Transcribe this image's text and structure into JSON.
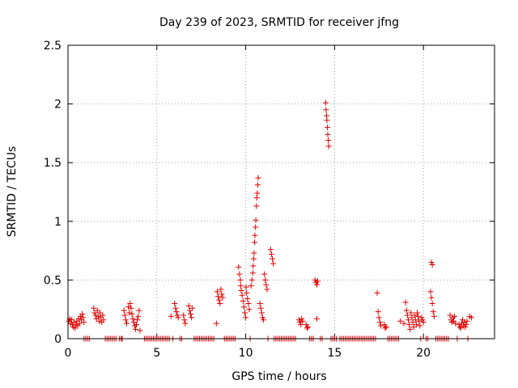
{
  "chart_data": {
    "type": "scatter",
    "title": "Day 239 of 2023, SRMTID for receiver jfng",
    "xlabel": "GPS time / hours",
    "ylabel": "SRMTID / TECUs",
    "xlim": [
      0,
      24
    ],
    "ylim": [
      0,
      2.5
    ],
    "xticks": [
      0,
      5,
      10,
      15,
      20
    ],
    "xtick_labels": [
      "0",
      "5",
      "10",
      "15",
      "20"
    ],
    "yticks": [
      0,
      0.5,
      1,
      1.5,
      2,
      2.5
    ],
    "ytick_labels": [
      "0",
      "0.5",
      "1",
      "1.5",
      "2",
      "2.5"
    ],
    "grid": true,
    "series": [
      {
        "name": "SRMTID",
        "marker": "plus",
        "color": "#e00000",
        "points": [
          [
            0.05,
            0.15
          ],
          [
            0.1,
            0.17
          ],
          [
            0.15,
            0.13
          ],
          [
            0.2,
            0.16
          ],
          [
            0.25,
            0.12
          ],
          [
            0.3,
            0.1
          ],
          [
            0.35,
            0.14
          ],
          [
            0.4,
            0.09
          ],
          [
            0.45,
            0.12
          ],
          [
            0.5,
            0.15
          ],
          [
            0.55,
            0.11
          ],
          [
            0.6,
            0.17
          ],
          [
            0.65,
            0.13
          ],
          [
            0.7,
            0.19
          ],
          [
            0.75,
            0.16
          ],
          [
            0.8,
            0.21
          ],
          [
            0.85,
            0.18
          ],
          [
            0.9,
            0.14
          ],
          [
            1.45,
            0.26
          ],
          [
            1.5,
            0.22
          ],
          [
            1.55,
            0.2
          ],
          [
            1.6,
            0.17
          ],
          [
            1.65,
            0.24
          ],
          [
            1.7,
            0.19
          ],
          [
            1.75,
            0.15
          ],
          [
            1.8,
            0.22
          ],
          [
            1.85,
            0.18
          ],
          [
            1.9,
            0.14
          ],
          [
            1.95,
            0.2
          ],
          [
            2.0,
            0.16
          ],
          [
            3.15,
            0.24
          ],
          [
            3.2,
            0.2
          ],
          [
            3.25,
            0.16
          ],
          [
            3.3,
            0.13
          ],
          [
            3.4,
            0.27
          ],
          [
            3.45,
            0.22
          ],
          [
            3.5,
            0.3
          ],
          [
            3.55,
            0.26
          ],
          [
            3.6,
            0.21
          ],
          [
            3.65,
            0.17
          ],
          [
            3.7,
            0.14
          ],
          [
            3.75,
            0.11
          ],
          [
            3.8,
            0.08
          ],
          [
            3.85,
            0.12
          ],
          [
            3.9,
            0.16
          ],
          [
            3.95,
            0.19
          ],
          [
            4.0,
            0.24
          ],
          [
            4.05,
            0.07
          ],
          [
            5.8,
            0.19
          ],
          [
            6.0,
            0.3
          ],
          [
            6.05,
            0.26
          ],
          [
            6.1,
            0.23
          ],
          [
            6.15,
            0.2
          ],
          [
            6.2,
            0.18
          ],
          [
            6.5,
            0.2
          ],
          [
            6.55,
            0.16
          ],
          [
            6.6,
            0.13
          ],
          [
            6.8,
            0.28
          ],
          [
            6.85,
            0.24
          ],
          [
            6.9,
            0.21
          ],
          [
            6.95,
            0.18
          ],
          [
            7.0,
            0.26
          ],
          [
            8.35,
            0.13
          ],
          [
            8.4,
            0.4
          ],
          [
            8.45,
            0.36
          ],
          [
            8.5,
            0.33
          ],
          [
            8.55,
            0.3
          ],
          [
            8.6,
            0.42
          ],
          [
            8.65,
            0.38
          ],
          [
            8.7,
            0.35
          ],
          [
            9.6,
            0.61
          ],
          [
            9.65,
            0.55
          ],
          [
            9.7,
            0.5
          ],
          [
            9.72,
            0.45
          ],
          [
            9.75,
            0.41
          ],
          [
            9.8,
            0.37
          ],
          [
            9.85,
            0.32
          ],
          [
            9.9,
            0.27
          ],
          [
            9.95,
            0.22
          ],
          [
            10.0,
            0.18
          ],
          [
            10.02,
            0.44
          ],
          [
            10.05,
            0.39
          ],
          [
            10.1,
            0.34
          ],
          [
            10.15,
            0.3
          ],
          [
            10.2,
            0.25
          ],
          [
            10.3,
            0.45
          ],
          [
            10.35,
            0.5
          ],
          [
            10.4,
            0.56
          ],
          [
            10.42,
            0.62
          ],
          [
            10.45,
            0.68
          ],
          [
            10.47,
            0.73
          ],
          [
            10.5,
            0.82
          ],
          [
            10.52,
            0.88
          ],
          [
            10.55,
            0.95
          ],
          [
            10.57,
            1.01
          ],
          [
            10.6,
            1.13
          ],
          [
            10.62,
            1.2
          ],
          [
            10.65,
            1.24
          ],
          [
            10.68,
            1.31
          ],
          [
            10.7,
            1.37
          ],
          [
            10.8,
            0.3
          ],
          [
            10.85,
            0.26
          ],
          [
            10.9,
            0.22
          ],
          [
            10.95,
            0.18
          ],
          [
            11.0,
            0.16
          ],
          [
            11.05,
            0.55
          ],
          [
            11.1,
            0.5
          ],
          [
            11.15,
            0.46
          ],
          [
            11.2,
            0.42
          ],
          [
            11.4,
            0.76
          ],
          [
            11.45,
            0.72
          ],
          [
            11.5,
            0.68
          ],
          [
            11.55,
            0.64
          ],
          [
            13.0,
            0.16
          ],
          [
            13.05,
            0.14
          ],
          [
            13.1,
            0.12
          ],
          [
            13.15,
            0.17
          ],
          [
            13.2,
            0.15
          ],
          [
            13.4,
            0.12
          ],
          [
            13.45,
            0.09
          ],
          [
            13.5,
            0.1
          ],
          [
            13.9,
            0.5
          ],
          [
            13.95,
            0.48
          ],
          [
            14.0,
            0.46
          ],
          [
            14.05,
            0.49
          ],
          [
            14.0,
            0.17
          ],
          [
            14.5,
            2.01
          ],
          [
            14.52,
            1.95
          ],
          [
            14.55,
            1.9
          ],
          [
            14.57,
            1.86
          ],
          [
            14.6,
            1.8
          ],
          [
            14.62,
            1.74
          ],
          [
            14.65,
            1.69
          ],
          [
            14.67,
            1.64
          ],
          [
            17.4,
            0.39
          ],
          [
            17.45,
            0.23
          ],
          [
            17.5,
            0.18
          ],
          [
            17.55,
            0.14
          ],
          [
            17.6,
            0.11
          ],
          [
            17.8,
            0.12
          ],
          [
            17.85,
            0.09
          ],
          [
            17.9,
            0.1
          ],
          [
            18.7,
            0.15
          ],
          [
            18.9,
            0.13
          ],
          [
            19.0,
            0.31
          ],
          [
            19.05,
            0.24
          ],
          [
            19.1,
            0.2
          ],
          [
            19.15,
            0.16
          ],
          [
            19.2,
            0.12
          ],
          [
            19.25,
            0.08
          ],
          [
            19.3,
            0.22
          ],
          [
            19.35,
            0.18
          ],
          [
            19.4,
            0.14
          ],
          [
            19.45,
            0.1
          ],
          [
            19.5,
            0.2
          ],
          [
            19.55,
            0.16
          ],
          [
            19.6,
            0.12
          ],
          [
            19.65,
            0.22
          ],
          [
            19.7,
            0.19
          ],
          [
            19.75,
            0.15
          ],
          [
            19.8,
            0.11
          ],
          [
            19.9,
            0.18
          ],
          [
            19.95,
            0.16
          ],
          [
            20.0,
            0.14
          ],
          [
            20.4,
            0.4
          ],
          [
            20.45,
            0.35
          ],
          [
            20.5,
            0.3
          ],
          [
            20.55,
            0.23
          ],
          [
            20.6,
            0.19
          ],
          [
            20.45,
            0.65
          ],
          [
            20.5,
            0.63
          ],
          [
            21.5,
            0.2
          ],
          [
            21.55,
            0.16
          ],
          [
            21.6,
            0.14
          ],
          [
            21.65,
            0.18
          ],
          [
            21.7,
            0.15
          ],
          [
            21.75,
            0.19
          ],
          [
            21.8,
            0.13
          ],
          [
            22.0,
            0.12
          ],
          [
            22.05,
            0.1
          ],
          [
            22.1,
            0.09
          ],
          [
            22.15,
            0.13
          ],
          [
            22.2,
            0.16
          ],
          [
            22.25,
            0.11
          ],
          [
            22.3,
            0.14
          ],
          [
            22.35,
            0.1
          ],
          [
            22.4,
            0.12
          ],
          [
            22.45,
            0.15
          ],
          [
            22.6,
            0.19
          ],
          [
            22.7,
            0.18
          ],
          [
            0.9,
            0.0
          ],
          [
            1.0,
            0.0
          ],
          [
            1.1,
            0.0
          ],
          [
            1.2,
            0.0
          ],
          [
            2.1,
            0.0
          ],
          [
            2.2,
            0.0
          ],
          [
            2.3,
            0.0
          ],
          [
            2.4,
            0.0
          ],
          [
            2.5,
            0.0
          ],
          [
            2.6,
            0.0
          ],
          [
            2.7,
            0.0
          ],
          [
            2.9,
            0.0
          ],
          [
            3.0,
            0.0
          ],
          [
            3.05,
            0.0
          ],
          [
            4.3,
            0.0
          ],
          [
            4.4,
            0.0
          ],
          [
            4.5,
            0.0
          ],
          [
            4.6,
            0.0
          ],
          [
            4.7,
            0.0
          ],
          [
            4.8,
            0.0
          ],
          [
            4.9,
            0.0
          ],
          [
            5.0,
            0.0
          ],
          [
            5.1,
            0.0
          ],
          [
            5.2,
            0.0
          ],
          [
            5.3,
            0.0
          ],
          [
            5.4,
            0.0
          ],
          [
            5.5,
            0.0
          ],
          [
            5.6,
            0.0
          ],
          [
            5.7,
            0.0
          ],
          [
            5.9,
            0.0
          ],
          [
            6.3,
            0.0
          ],
          [
            6.4,
            0.0
          ],
          [
            7.1,
            0.0
          ],
          [
            7.2,
            0.0
          ],
          [
            7.3,
            0.0
          ],
          [
            7.4,
            0.0
          ],
          [
            7.5,
            0.0
          ],
          [
            7.6,
            0.0
          ],
          [
            7.7,
            0.0
          ],
          [
            7.8,
            0.0
          ],
          [
            7.9,
            0.0
          ],
          [
            8.0,
            0.0
          ],
          [
            8.1,
            0.0
          ],
          [
            8.2,
            0.0
          ],
          [
            8.8,
            0.0
          ],
          [
            8.9,
            0.0
          ],
          [
            9.0,
            0.0
          ],
          [
            9.1,
            0.0
          ],
          [
            9.2,
            0.0
          ],
          [
            9.3,
            0.0
          ],
          [
            9.4,
            0.0
          ],
          [
            10.25,
            0.0
          ],
          [
            11.25,
            0.0
          ],
          [
            11.6,
            0.0
          ],
          [
            11.7,
            0.0
          ],
          [
            11.8,
            0.0
          ],
          [
            11.9,
            0.0
          ],
          [
            12.0,
            0.0
          ],
          [
            12.1,
            0.0
          ],
          [
            12.2,
            0.0
          ],
          [
            12.3,
            0.0
          ],
          [
            12.4,
            0.0
          ],
          [
            12.5,
            0.0
          ],
          [
            12.6,
            0.0
          ],
          [
            12.7,
            0.0
          ],
          [
            12.8,
            0.0
          ],
          [
            13.6,
            0.0
          ],
          [
            13.7,
            0.0
          ],
          [
            13.8,
            0.0
          ],
          [
            14.2,
            0.0
          ],
          [
            14.3,
            0.0
          ],
          [
            14.8,
            0.0
          ],
          [
            14.9,
            0.0
          ],
          [
            15.0,
            0.0
          ],
          [
            15.1,
            0.0
          ],
          [
            15.3,
            0.0
          ],
          [
            15.4,
            0.0
          ],
          [
            15.5,
            0.0
          ],
          [
            15.6,
            0.0
          ],
          [
            15.7,
            0.0
          ],
          [
            15.8,
            0.0
          ],
          [
            15.9,
            0.0
          ],
          [
            16.0,
            0.0
          ],
          [
            16.1,
            0.0
          ],
          [
            16.2,
            0.0
          ],
          [
            16.3,
            0.0
          ],
          [
            16.4,
            0.0
          ],
          [
            16.5,
            0.0
          ],
          [
            16.6,
            0.0
          ],
          [
            16.7,
            0.0
          ],
          [
            16.8,
            0.0
          ],
          [
            16.9,
            0.0
          ],
          [
            17.0,
            0.0
          ],
          [
            17.1,
            0.0
          ],
          [
            17.2,
            0.0
          ],
          [
            17.3,
            0.0
          ],
          [
            18.0,
            0.0
          ],
          [
            18.1,
            0.0
          ],
          [
            18.2,
            0.0
          ],
          [
            18.3,
            0.0
          ],
          [
            18.4,
            0.0
          ],
          [
            18.5,
            0.0
          ],
          [
            18.6,
            0.0
          ],
          [
            19.85,
            0.0
          ],
          [
            20.15,
            0.0
          ],
          [
            20.25,
            0.0
          ],
          [
            20.7,
            0.0
          ],
          [
            20.8,
            0.0
          ],
          [
            20.9,
            0.0
          ],
          [
            21.0,
            0.0
          ],
          [
            21.1,
            0.0
          ],
          [
            21.2,
            0.0
          ],
          [
            21.3,
            0.0
          ],
          [
            21.4,
            0.0
          ],
          [
            21.9,
            0.0
          ],
          [
            22.5,
            0.0
          ]
        ]
      }
    ]
  }
}
